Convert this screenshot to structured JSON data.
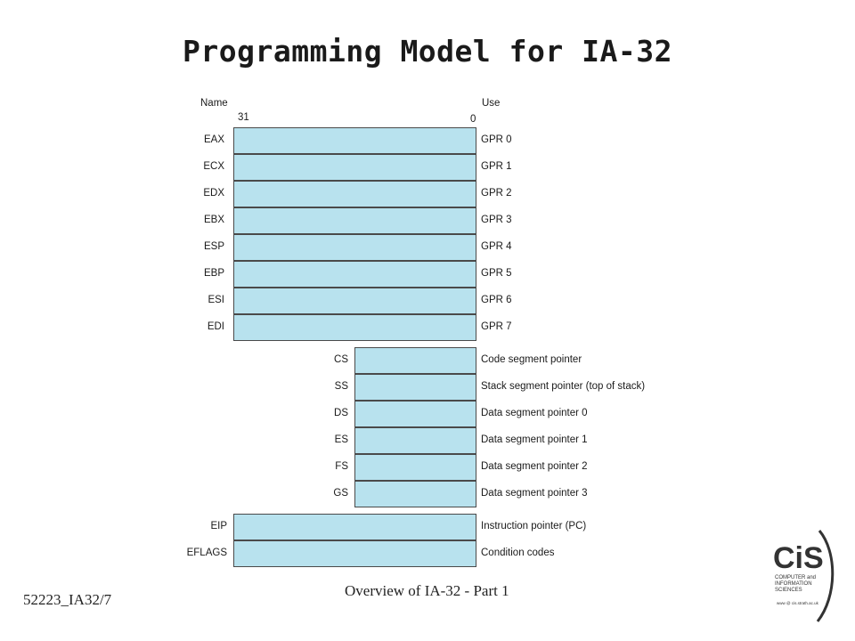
{
  "title": "Programming Model for IA-32",
  "diagram": {
    "header_name": "Name",
    "header_use": "Use",
    "bit_high": "31",
    "bit_low": "0",
    "gpr": [
      {
        "name": "EAX",
        "use": "GPR 0"
      },
      {
        "name": "ECX",
        "use": "GPR 1"
      },
      {
        "name": "EDX",
        "use": "GPR 2"
      },
      {
        "name": "EBX",
        "use": "GPR 3"
      },
      {
        "name": "ESP",
        "use": "GPR 4"
      },
      {
        "name": "EBP",
        "use": "GPR 5"
      },
      {
        "name": "ESI",
        "use": "GPR 6"
      },
      {
        "name": "EDI",
        "use": "GPR 7"
      }
    ],
    "segment": [
      {
        "name": "CS",
        "use": "Code segment pointer"
      },
      {
        "name": "SS",
        "use": "Stack segment pointer (top of stack)"
      },
      {
        "name": "DS",
        "use": "Data segment pointer 0"
      },
      {
        "name": "ES",
        "use": "Data segment pointer 1"
      },
      {
        "name": "FS",
        "use": "Data segment pointer 2"
      },
      {
        "name": "GS",
        "use": "Data segment pointer 3"
      }
    ],
    "control": [
      {
        "name": "EIP",
        "use": "Instruction pointer (PC)"
      },
      {
        "name": "EFLAGS",
        "use": "Condition codes"
      }
    ],
    "register_color": "#b8e2ee"
  },
  "footer": {
    "slide_id": "52223_IA32/7",
    "caption": "Overview of IA-32 - Part 1"
  },
  "logo": {
    "icon": "cis-logo",
    "text": "CiS",
    "subtext": "COMPUTER and INFORMATION SCIENCES",
    "url": "www @ cis.strath.ac.uk"
  }
}
